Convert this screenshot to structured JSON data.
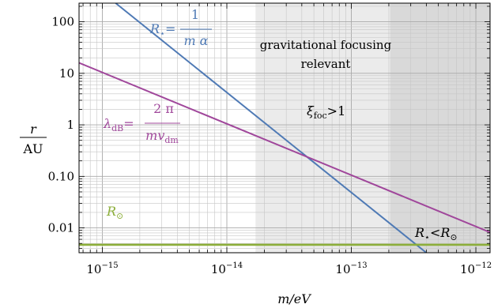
{
  "chart_data": {
    "type": "line",
    "xscale": "log",
    "yscale": "log",
    "xlim": [
      6.5e-16,
      1.3e-12
    ],
    "ylim": [
      0.0033,
      230
    ],
    "grid": true,
    "xlabel": "m/eV",
    "ylabel": {
      "numerator": "r",
      "denominator": "AU"
    },
    "x_ticks": [
      {
        "value": 1e-15,
        "base": "10",
        "exp": "−15"
      },
      {
        "value": 1e-14,
        "base": "10",
        "exp": "−14"
      },
      {
        "value": 1e-13,
        "base": "10",
        "exp": "−13"
      },
      {
        "value": 1e-12,
        "base": "10",
        "exp": "−12"
      }
    ],
    "y_ticks": [
      {
        "value": 100,
        "label": "100"
      },
      {
        "value": 10,
        "label": "10"
      },
      {
        "value": 1,
        "label": "1"
      },
      {
        "value": 0.1,
        "label": "0.10"
      },
      {
        "value": 0.01,
        "label": "0.01"
      }
    ],
    "regions": [
      {
        "id": "focusing",
        "x_from": 1.7e-14,
        "x_to": 1.3e-12,
        "color": "#ebebeb"
      },
      {
        "id": "inside-sun",
        "x_from": 2.05e-13,
        "x_to": 1.3e-12,
        "color": "#d9d9d9"
      }
    ],
    "series": [
      {
        "id": "r-star",
        "color": "#4f7ab5",
        "points": [
          [
            1.28e-15,
            230
          ],
          [
            4e-13,
            0.0033
          ]
        ]
      },
      {
        "id": "lambda-db",
        "color": "#a0479b",
        "points": [
          [
            6.5e-16,
            16
          ],
          [
            1.3e-12,
            0.0082
          ]
        ]
      },
      {
        "id": "r-sun",
        "color": "#8cae3a",
        "points": [
          [
            6.5e-16,
            0.0047
          ],
          [
            1.3e-12,
            0.0047
          ]
        ]
      }
    ],
    "annotations": {
      "r_star": {
        "lhs_main": "R",
        "lhs_sub": "⋆",
        "num": "1",
        "den_m": "m",
        "den_alpha": "α",
        "color": "#4f7ab5"
      },
      "lambda_db": {
        "lhs_main": "λ",
        "lhs_sub": "dB",
        "num": "2 π",
        "den_mv": "mv",
        "den_sub": "dm",
        "color": "#a0479b"
      },
      "r_sun": {
        "main": "R",
        "sub": "⊙",
        "color": "#8cae3a"
      },
      "focusing": {
        "line1": "gravitational focusing",
        "line2": "relevant"
      },
      "xi": {
        "main": "ξ",
        "sub": "foc",
        "rel": ">1"
      },
      "rstar_lt_rsun": {
        "a_main": "R",
        "a_sub": "⋆",
        "rel": "<",
        "b_main": "R",
        "b_sub": "⊙"
      }
    }
  }
}
